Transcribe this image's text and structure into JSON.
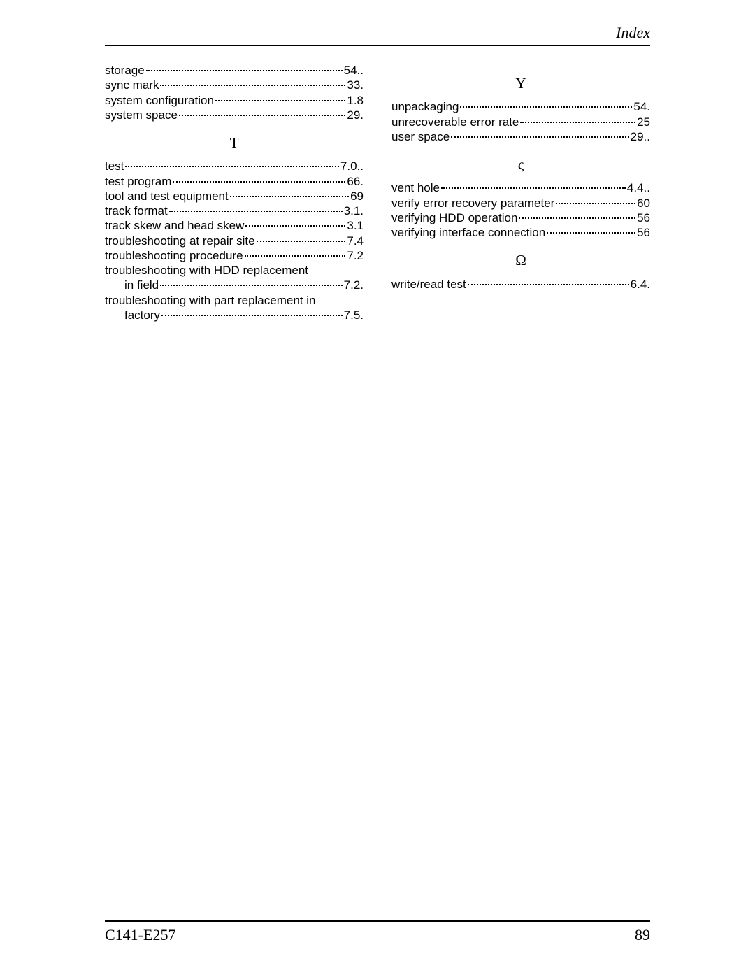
{
  "header": {
    "title": "Index"
  },
  "footer": {
    "doc_id": "C141-E257",
    "page_number": "89"
  },
  "left_column": {
    "initial_entries": [
      {
        "term": "storage",
        "page": "54.."
      },
      {
        "term": "sync mark",
        "page": "33."
      },
      {
        "term": "system configuration",
        "page": "1.8"
      },
      {
        "term": "system space",
        "page": "29."
      }
    ],
    "sections": [
      {
        "letter": "T",
        "entries": [
          {
            "term": "test",
            "page": "7.0.."
          },
          {
            "term": "test program",
            "page": "66."
          },
          {
            "term": "tool and test equipment",
            "page": "69"
          },
          {
            "term": "track format",
            "page": "3.1."
          },
          {
            "term": "track skew and head skew",
            "page": "3.1"
          },
          {
            "term": "troubleshooting at repair site",
            "page": "7.4"
          },
          {
            "term": "troubleshooting procedure",
            "page": "7.2"
          },
          {
            "term": "troubleshooting with HDD replacement",
            "cont": "in field",
            "page": "7.2."
          },
          {
            "term": "troubleshooting with part replacement in",
            "cont": "factory",
            "page": "7.5."
          }
        ]
      }
    ]
  },
  "right_column": {
    "sections": [
      {
        "letter": "Y",
        "entries": [
          {
            "term": "unpackaging",
            "page": "54."
          },
          {
            "term": "unrecoverable error rate",
            "page": "25"
          },
          {
            "term": "user space",
            "page": "29.."
          }
        ]
      },
      {
        "letter": "ς",
        "entries": [
          {
            "term": "vent hole",
            "page": "4.4.."
          },
          {
            "term": "verify error recovery parameter",
            "page": "60"
          },
          {
            "term": "verifying HDD operation",
            "page": "56"
          },
          {
            "term": "verifying interface connection",
            "page": "56"
          }
        ]
      },
      {
        "letter": "Ω",
        "entries": [
          {
            "term": "write/read test",
            "page": "6.4."
          }
        ]
      }
    ]
  }
}
